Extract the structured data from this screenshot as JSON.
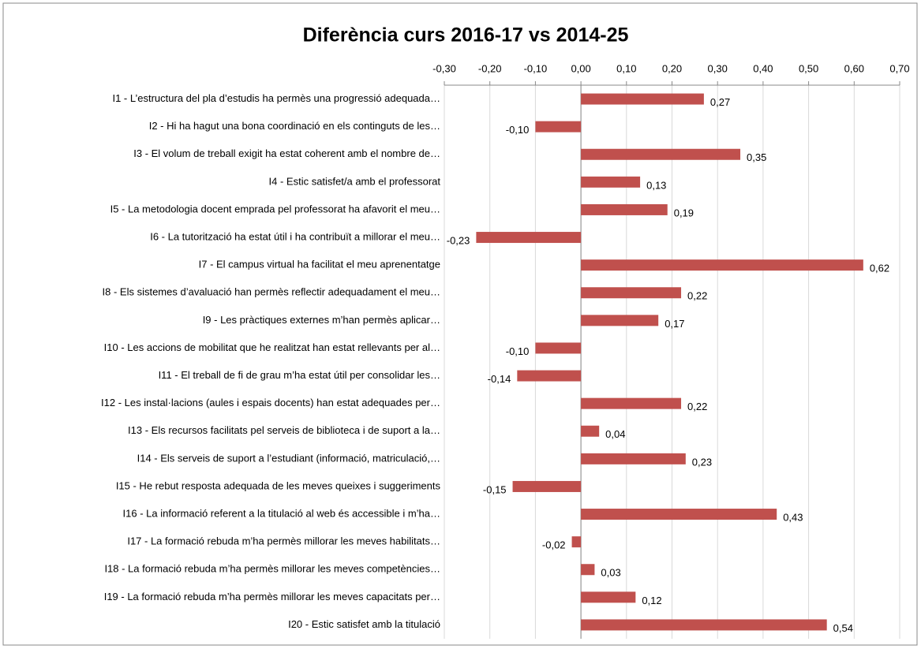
{
  "chart_data": {
    "type": "bar",
    "orientation": "horizontal",
    "title": "Diferència curs 2016-17 vs 2014-25",
    "categories": [
      "I1 - L’estructura del pla d’estudis ha permès una progressió adequada…",
      "I2 - Hi ha hagut una bona coordinació en els continguts de les…",
      "I3 - El volum de treball exigit ha estat coherent amb el nombre de…",
      "I4 - Estic satisfet/a amb el professorat",
      "I5 - La metodologia docent emprada pel professorat ha afavorit el meu…",
      "I6 - La tutorització ha estat útil i ha contribuït a millorar el meu…",
      "I7 - El campus virtual ha facilitat el meu aprenentatge",
      "I8 - Els sistemes d’avaluació han permès reflectir adequadament el meu…",
      "I9 - Les pràctiques externes m’han permès aplicar…",
      "I10 - Les accions de mobilitat que he realitzat han estat rellevants per al…",
      "I11 - El treball de fi de grau m’ha estat útil per consolidar les…",
      "I12 - Les instal·lacions (aules i espais docents) han estat adequades per…",
      "I13 - Els recursos facilitats pel serveis de biblioteca i de suport a la…",
      "I14 - Els serveis de suport a l’estudiant (informació, matriculació,…",
      "I15 - He rebut resposta adequada de les meves queixes i suggeriments",
      "I16 - La informació referent a la titulació al web és accessible i m’ha…",
      "I17 - La formació rebuda m’ha permès millorar les meves habilitats…",
      "I18 - La formació rebuda m’ha permès millorar les meves competències…",
      "I19 - La formació rebuda m’ha permès millorar les meves capacitats per…",
      "I20 - Estic satisfet amb la titulació"
    ],
    "values": [
      0.27,
      -0.1,
      0.35,
      0.13,
      0.19,
      -0.23,
      0.62,
      0.22,
      0.17,
      -0.1,
      -0.14,
      0.22,
      0.04,
      0.23,
      -0.15,
      0.43,
      -0.02,
      0.03,
      0.12,
      0.54
    ],
    "value_labels": [
      "0,27",
      "-0,10",
      "0,35",
      "0,13",
      "0,19",
      "-0,23",
      "0,62",
      "0,22",
      "0,17",
      "-0,10",
      "-0,14",
      "0,22",
      "0,04",
      "0,23",
      "-0,15",
      "0,43",
      "-0,02",
      "0,03",
      "0,12",
      "0,54"
    ],
    "color": "#c0504d",
    "xlim": [
      -0.3,
      0.7
    ],
    "xticks": [
      {
        "value": -0.3,
        "label": "-0,30"
      },
      {
        "value": -0.2,
        "label": "-0,20"
      },
      {
        "value": -0.1,
        "label": "-0,10"
      },
      {
        "value": 0,
        "label": "0,00"
      },
      {
        "value": 0.1,
        "label": "0,10"
      },
      {
        "value": 0.2,
        "label": "0,20"
      },
      {
        "value": 0.3,
        "label": "0,30"
      },
      {
        "value": 0.4,
        "label": "0,40"
      },
      {
        "value": 0.5,
        "label": "0,50"
      },
      {
        "value": 0.6,
        "label": "0,60"
      },
      {
        "value": 0.7,
        "label": "0,70"
      }
    ],
    "grid": true
  }
}
